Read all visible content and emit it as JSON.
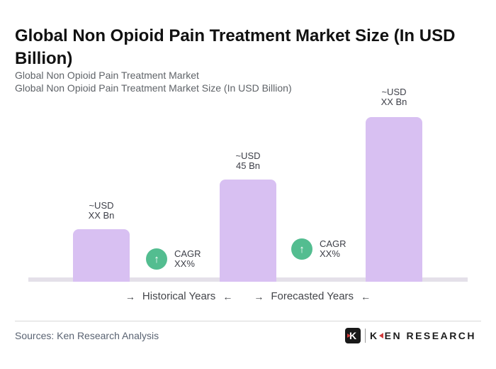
{
  "header": {
    "title": "Global Non Opioid Pain Treatment Market Size (In USD Billion)",
    "subtitle_line1": "Global Non Opioid Pain Treatment Market",
    "subtitle_line2": "Global Non Opioid Pain Treatment Market Size (In USD Billion)"
  },
  "chart_data": {
    "type": "bar",
    "title": "Global Non Opioid Pain Treatment Market Size (In USD Billion)",
    "unit": "USD Billion",
    "bars": [
      {
        "label_line1": "~USD",
        "label_line2": "XX Bn",
        "value_bn": "XX",
        "estimated_value_bn": 23
      },
      {
        "label_line1": "~USD",
        "label_line2": "45 Bn",
        "value_bn": 45,
        "estimated_value_bn": 45
      },
      {
        "label_line1": "~USD",
        "label_line2": "XX Bn",
        "value_bn": "XX",
        "estimated_value_bn": 72
      }
    ],
    "badges": [
      {
        "arrow": "↑",
        "line1": "CAGR",
        "line2": "XX%"
      },
      {
        "arrow": "↑",
        "line1": "CAGR",
        "line2": "XX%"
      }
    ],
    "period_labels": [
      "Historical Years",
      "Forecasted Years"
    ],
    "bar_color": "#d8c0f2",
    "badge_color": "#53bd90",
    "grid": false,
    "legend_position": "bottom",
    "ylim": [
      0,
      75
    ]
  },
  "legend": {
    "arrow_right": "→",
    "arrow_left": "←",
    "historical": "Historical Years",
    "forecasted": "Forecasted Years"
  },
  "footer": {
    "sources": "Sources: Ken Research Analysis",
    "logo": {
      "icon_letter": "K",
      "word_k": "K",
      "word_rest": "EN RESEARCH"
    }
  }
}
